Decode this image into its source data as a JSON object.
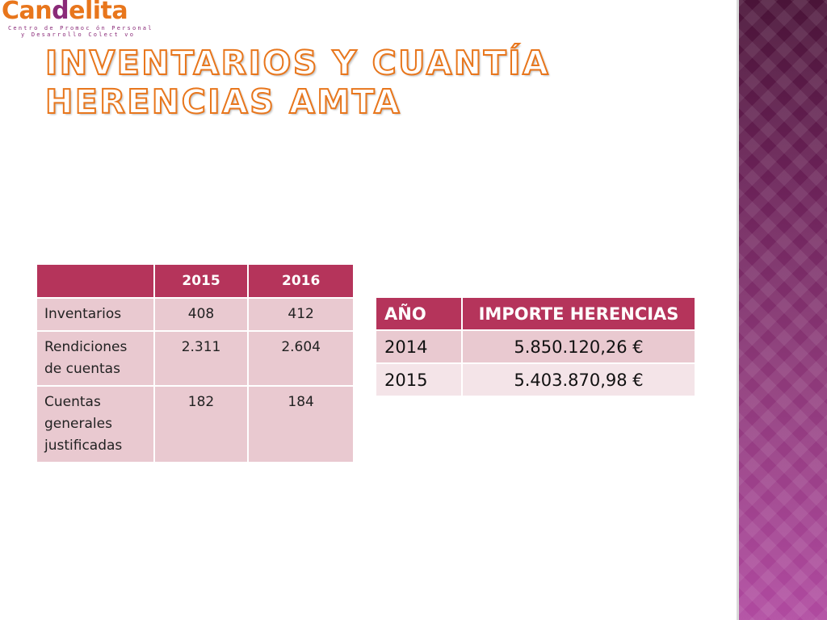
{
  "logo": {
    "name_start": "Can",
    "name_mid": "d",
    "name_end": "elita",
    "subtitle_line1": "Centro de Promoc ón Personal",
    "subtitle_line2": "y Desarrollo Colect vo"
  },
  "title": {
    "line1": "Inventarios y cuantía",
    "line2": "herencias AMTA"
  },
  "table_inventarios": {
    "headers": [
      "",
      "2015",
      "2016"
    ],
    "rows": [
      [
        "Inventarios",
        "408",
        "412"
      ],
      [
        "Rendiciones de cuentas",
        "2.311",
        "2.604"
      ],
      [
        "Cuentas generales justificadas",
        "182",
        "184"
      ]
    ]
  },
  "table_herencias": {
    "headers": [
      "AÑO",
      "IMPORTE HERENCIAS"
    ],
    "rows": [
      [
        "2014",
        "5.850.120,26 €"
      ],
      [
        "2015",
        "5.403.870,98 €"
      ]
    ]
  },
  "colors": {
    "header_bg": "#b5345b",
    "row_bg": "#e9c9d0",
    "row_alt_bg": "#f4e4e8",
    "title_outline": "#e8761c",
    "logo_orange": "#e8761c",
    "logo_purple": "#8a2a78"
  }
}
